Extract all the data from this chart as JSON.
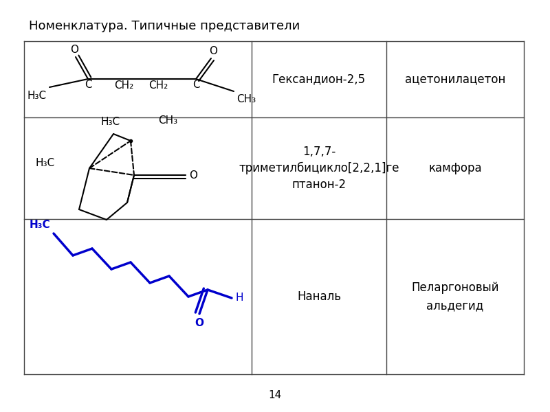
{
  "title": "Номенклатура. Типичные представители",
  "title_fontsize": 13,
  "page_number": "14",
  "cell_texts": {
    "r0c1": "Гександион-2,5",
    "r0c2": "ацетонилацетон",
    "r1c1": "1,7,7-\nтриметилбицикло[2,2,1]ге\nптанон-2",
    "r1c2": "камфора",
    "r2c1": "Наналь",
    "r2c2": "Пеларгоновый\nальдегид"
  },
  "blue_color": "#0000CC",
  "black_color": "#000000",
  "line_color": "#444444",
  "bond_lw": 1.5,
  "text_fontsize": 12,
  "small_fontsize": 11
}
